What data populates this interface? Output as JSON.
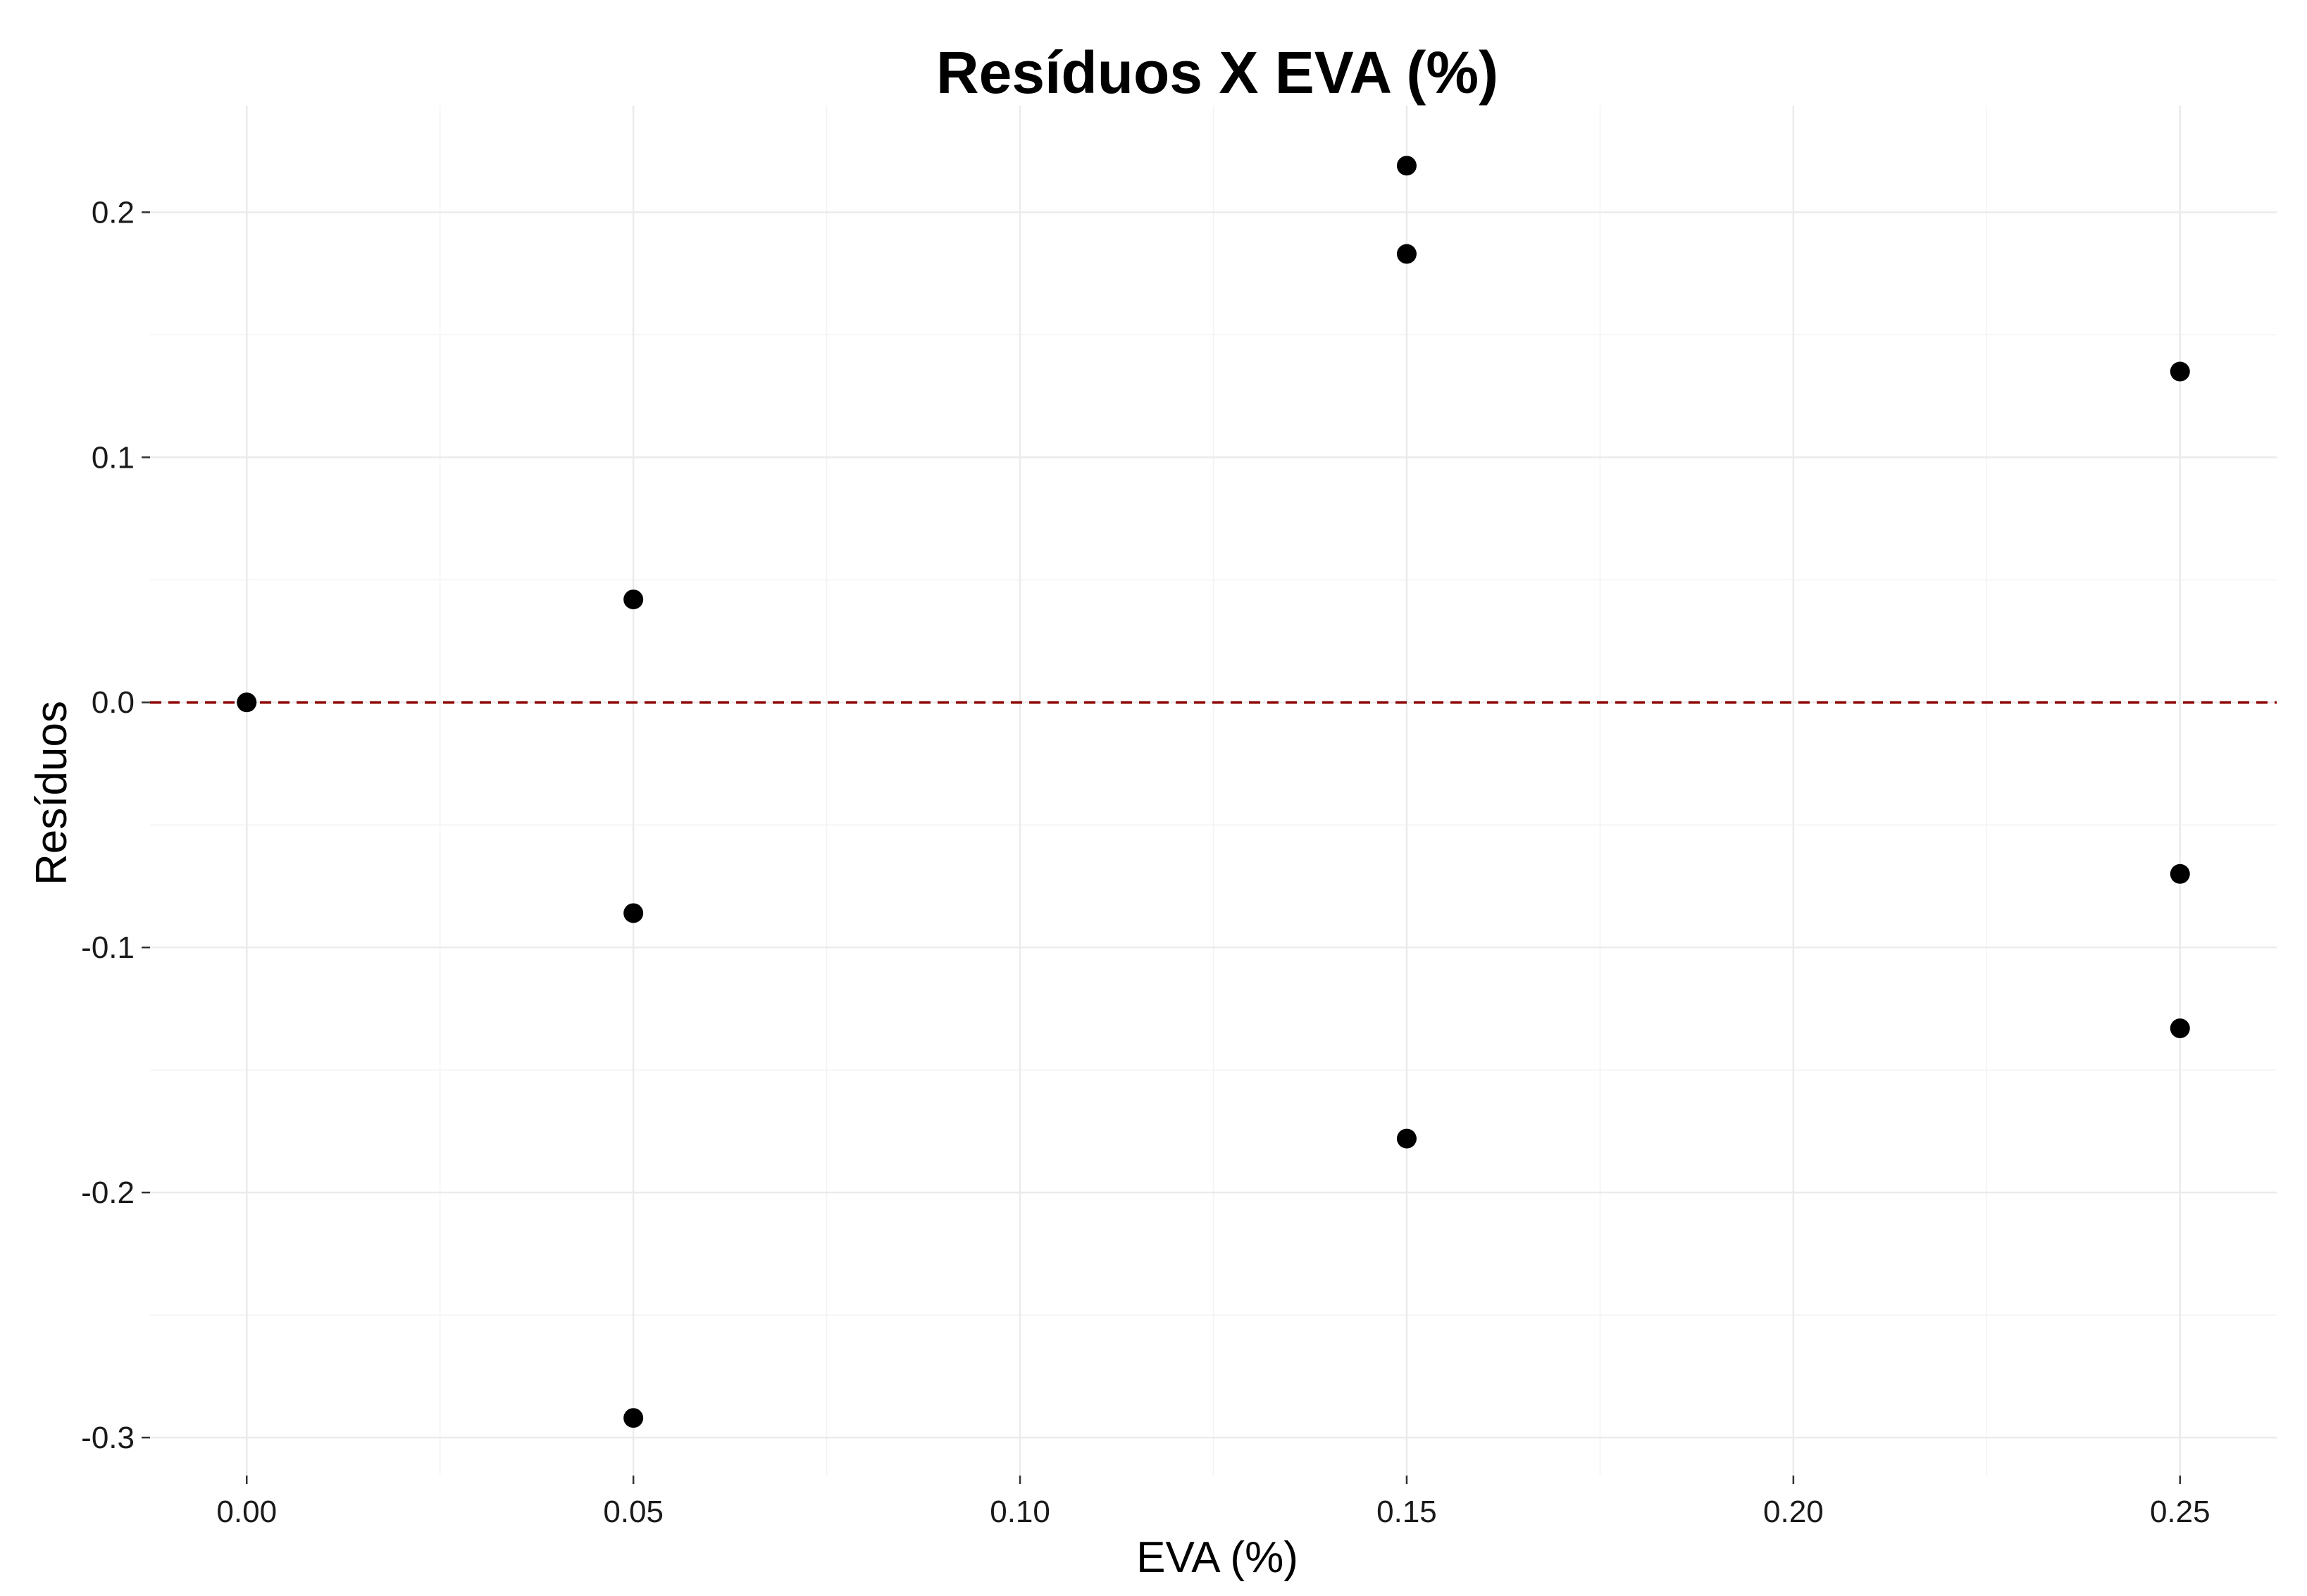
{
  "chart_data": {
    "type": "scatter",
    "title": "Resíduos X EVA (%)",
    "xlabel": "EVA (%)",
    "ylabel": "Resíduos",
    "xlim": [
      -0.0125,
      0.2625
    ],
    "ylim": [
      -0.3155,
      0.2435
    ],
    "x_ticks": [
      0.0,
      0.05,
      0.1,
      0.15,
      0.2,
      0.25
    ],
    "x_tick_labels": [
      "0.00",
      "0.05",
      "0.10",
      "0.15",
      "0.20",
      "0.25"
    ],
    "y_ticks": [
      -0.3,
      -0.2,
      -0.1,
      0.0,
      0.1,
      0.2
    ],
    "y_tick_labels": [
      "-0.3",
      "-0.2",
      "-0.1",
      "0.0",
      "0.1",
      "0.2"
    ],
    "grid": true,
    "reference_line": {
      "y": 0,
      "style": "dashed",
      "color": "#8b0000"
    },
    "series": [
      {
        "color": "#000000",
        "points": [
          {
            "x": 0.0,
            "y": 0.0
          },
          {
            "x": 0.05,
            "y": 0.042
          },
          {
            "x": 0.05,
            "y": -0.086
          },
          {
            "x": 0.05,
            "y": -0.292
          },
          {
            "x": 0.15,
            "y": 0.219
          },
          {
            "x": 0.15,
            "y": 0.183
          },
          {
            "x": 0.15,
            "y": -0.178
          },
          {
            "x": 0.25,
            "y": 0.135
          },
          {
            "x": 0.25,
            "y": -0.07
          },
          {
            "x": 0.25,
            "y": -0.133
          }
        ]
      }
    ]
  }
}
